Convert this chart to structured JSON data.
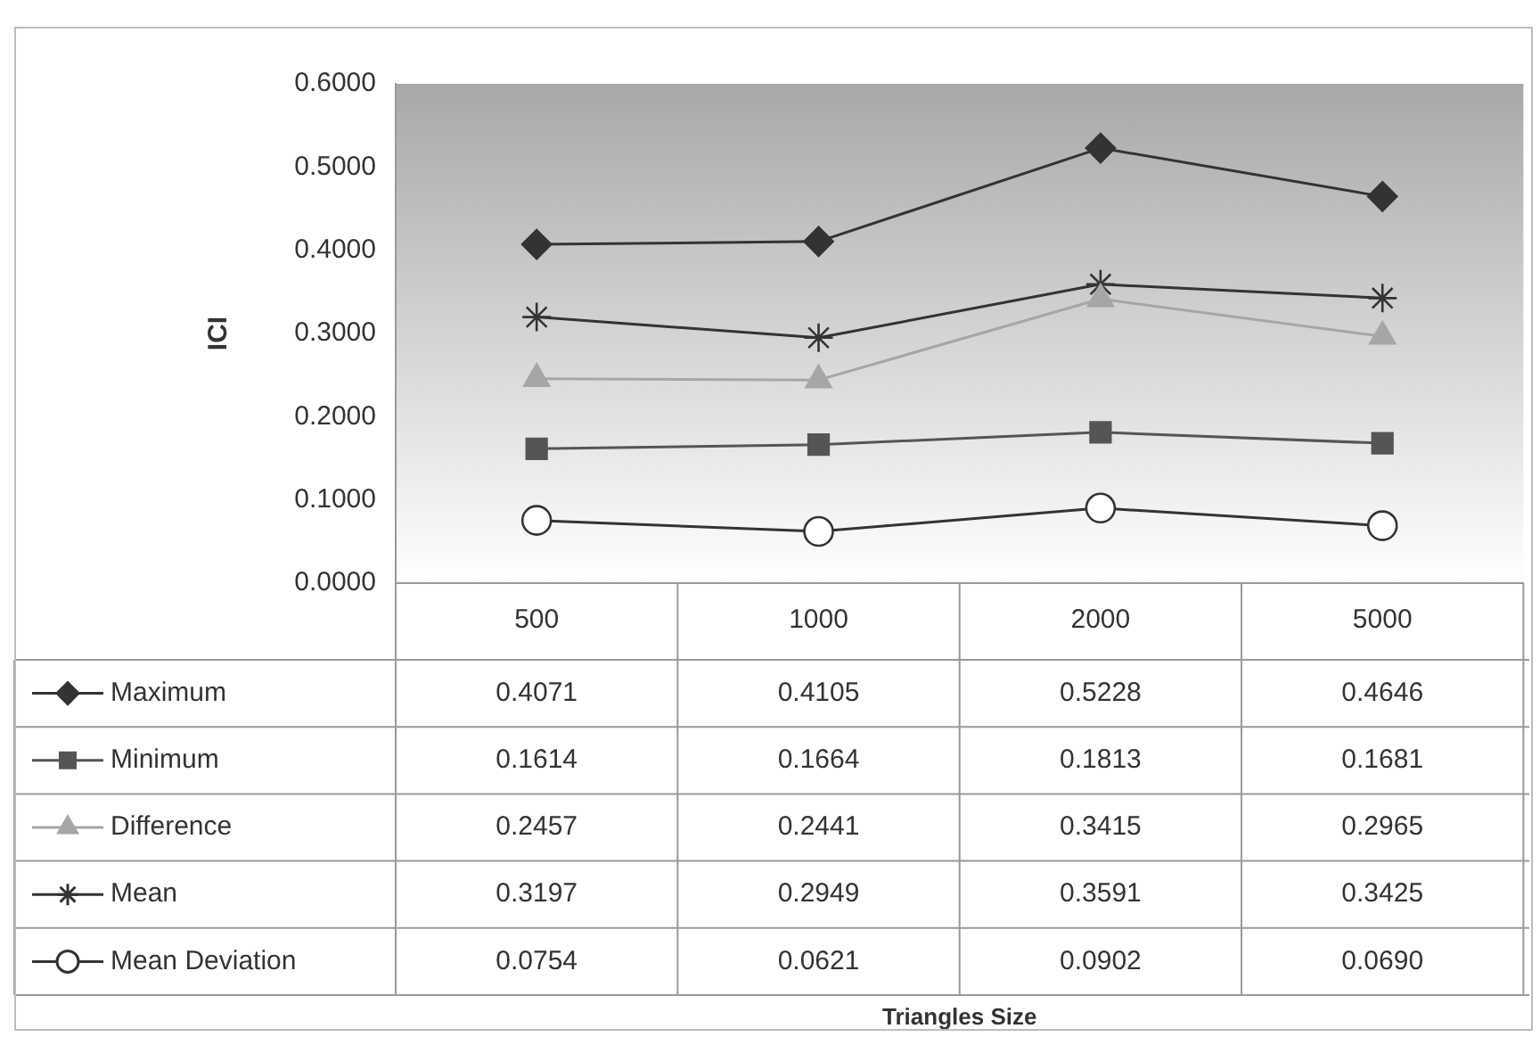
{
  "chart_data": {
    "type": "line",
    "annotations": [
      "Triangles Size"
    ],
    "ylabel": "ICI",
    "categories": [
      "500",
      "1000",
      "2000",
      "5000"
    ],
    "ylim": [
      0,
      0.6
    ],
    "yticks": [
      {
        "value": 0,
        "label": "0.0000"
      },
      {
        "value": 0.1,
        "label": "0.1000"
      },
      {
        "value": 0.2,
        "label": "0.2000"
      },
      {
        "value": 0.3,
        "label": "0.3000"
      },
      {
        "value": 0.4,
        "label": "0.4000"
      },
      {
        "value": 0.5,
        "label": "0.5000"
      },
      {
        "value": 0.6,
        "label": "0.6000"
      }
    ],
    "grid": false,
    "legend": "bottom",
    "line_style": "solid",
    "series": [
      {
        "name": "Maximum",
        "color": "#333333",
        "marker": "diamond",
        "values": [
          0.4071,
          0.4105,
          0.5228,
          0.4646
        ],
        "value_labels": [
          "0.4071",
          "0.4105",
          "0.5228",
          "0.4646"
        ]
      },
      {
        "name": "Minimum",
        "color": "#555555",
        "marker": "square",
        "values": [
          0.1614,
          0.1664,
          0.1813,
          0.1681
        ],
        "value_labels": [
          "0.1614",
          "0.1664",
          "0.1813",
          "0.1681"
        ]
      },
      {
        "name": "Difference",
        "color": "#a6a6a6",
        "marker": "triangle",
        "values": [
          0.2457,
          0.2441,
          0.3415,
          0.2965
        ],
        "value_labels": [
          "0.2457",
          "0.2441",
          "0.3415",
          "0.2965"
        ]
      },
      {
        "name": "Mean",
        "color": "#333333",
        "marker": "cross",
        "values": [
          0.3197,
          0.2949,
          0.3591,
          0.3425
        ],
        "value_labels": [
          "0.3197",
          "0.2949",
          "0.3591",
          "0.3425"
        ]
      },
      {
        "name": "Mean Deviation",
        "color": "#333333",
        "marker": "circle",
        "values": [
          0.0754,
          0.0621,
          0.0902,
          0.069
        ],
        "value_labels": [
          "0.0754",
          "0.0621",
          "0.0902",
          "0.0690"
        ]
      }
    ]
  }
}
